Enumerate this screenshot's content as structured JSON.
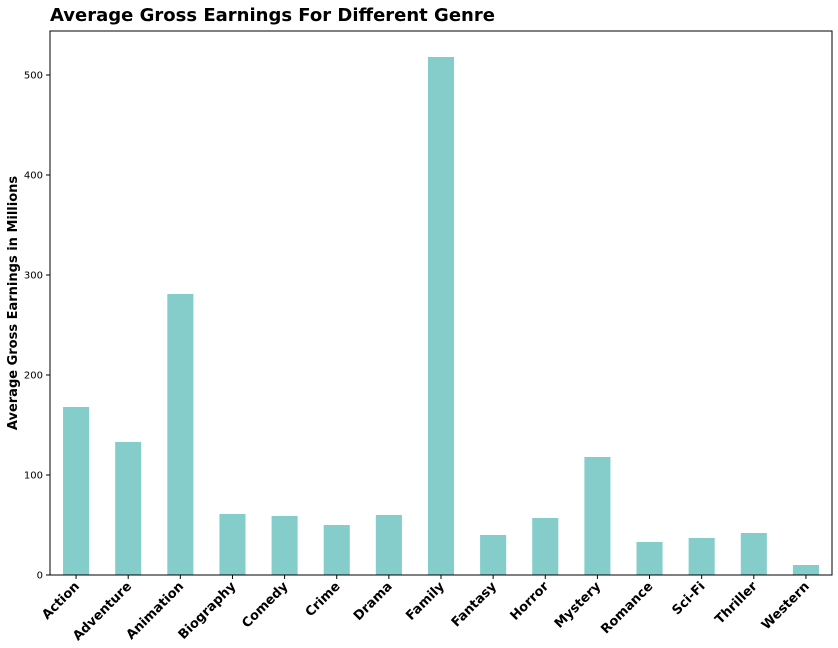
{
  "chart_data": {
    "type": "bar",
    "title": "Average Gross Earnings For Different Genre",
    "xlabel": "",
    "ylabel": "Average Gross Earnings in Millions",
    "categories": [
      "Action",
      "Adventure",
      "Animation",
      "Biography",
      "Comedy",
      "Crime",
      "Drama",
      "Family",
      "Fantasy",
      "Horror",
      "Mystery",
      "Romance",
      "Sci-Fi",
      "Thriller",
      "Western"
    ],
    "values": [
      168,
      133,
      281,
      61,
      59,
      50,
      60,
      518,
      40,
      57,
      118,
      33,
      37,
      42,
      10
    ],
    "ylim": [
      0,
      544
    ],
    "yticks": [
      0,
      100,
      200,
      300,
      400,
      500
    ],
    "bar_color": "#84cdcb",
    "grid": false,
    "legend": "none"
  }
}
